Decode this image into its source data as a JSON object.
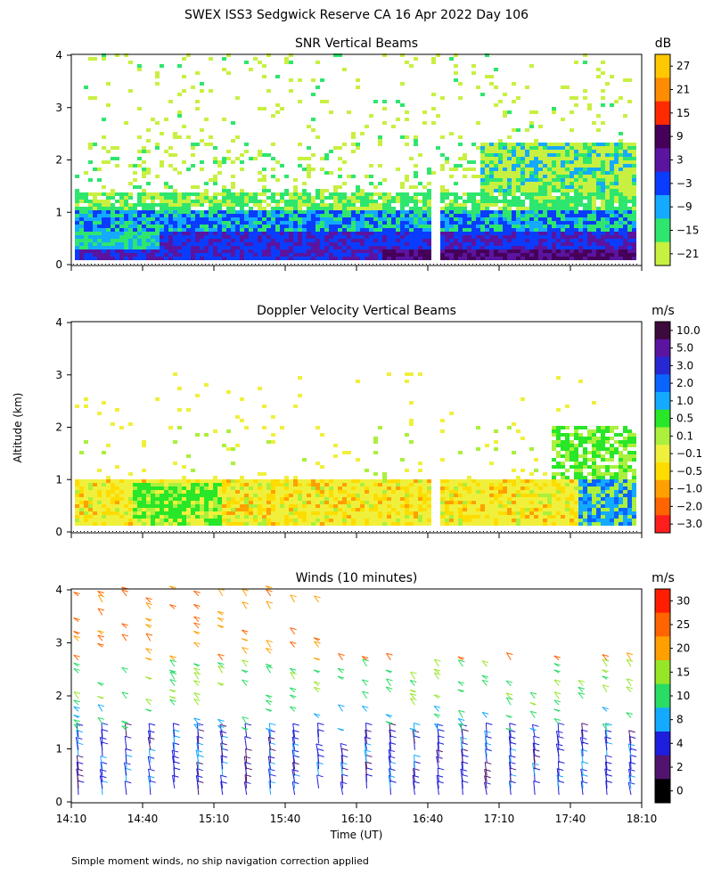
{
  "page": {
    "title": "SWEX ISS3 Sedgwick Reserve CA  16 Apr 2022 Day 106",
    "footnote": "Simple moment winds, no ship navigation correction applied",
    "y_axis_label": "Altitude (km)",
    "x_axis_label": "Time (UT)"
  },
  "chart_data": [
    {
      "type": "heatmap",
      "title": "SNR Vertical Beams",
      "colorbar_unit": "dB",
      "colorbar_labels": [
        "27",
        "21",
        "15",
        "9",
        "3",
        "−3",
        "−9",
        "−15",
        "−21"
      ],
      "colorbar_colors": [
        "#ffc800",
        "#ff8c00",
        "#ff2a00",
        "#46005a",
        "#5a14a0",
        "#0a3cff",
        "#14aaff",
        "#2ee66e",
        "#c8f040"
      ],
      "yticks": [
        "0",
        "1",
        "2",
        "3",
        "4"
      ],
      "ylim": [
        0,
        4
      ],
      "xlim": [
        "14:10",
        "18:10"
      ]
    },
    {
      "type": "heatmap",
      "title": "Doppler Velocity Vertical Beams",
      "colorbar_unit": "m/s",
      "colorbar_labels": [
        "10.0",
        "5.0",
        "3.0",
        "2.0",
        "1.0",
        "0.5",
        "0.1",
        "−0.1",
        "−0.5",
        "−1.0",
        "−2.0",
        "−3.0"
      ],
      "colorbar_colors": [
        "#3c0a3c",
        "#5a14a0",
        "#2828d2",
        "#0a64ff",
        "#14aaff",
        "#28e628",
        "#aaf03c",
        "#f0f03c",
        "#ffdc00",
        "#ffa000",
        "#ff6400",
        "#ff1e1e"
      ],
      "yticks": [
        "0",
        "1",
        "2",
        "3",
        "4"
      ],
      "ylim": [
        0,
        4
      ],
      "xlim": [
        "14:10",
        "18:10"
      ]
    },
    {
      "type": "scatter",
      "title": "Winds (10 minutes)",
      "colorbar_unit": "m/s",
      "colorbar_labels": [
        "30",
        "25",
        "20",
        "15",
        "10",
        "8",
        "4",
        "2",
        "0"
      ],
      "colorbar_colors": [
        "#ff1e00",
        "#ff6400",
        "#ffa000",
        "#96e628",
        "#28dc64",
        "#14aaff",
        "#1e1edc",
        "#50146e",
        "#000000"
      ],
      "yticks": [
        "0",
        "1",
        "2",
        "3",
        "4"
      ],
      "ylim": [
        0,
        4
      ],
      "x": [
        "14:10",
        "14:40",
        "15:10",
        "15:40",
        "16:10",
        "16:40",
        "17:10",
        "17:40",
        "18:10"
      ]
    }
  ]
}
